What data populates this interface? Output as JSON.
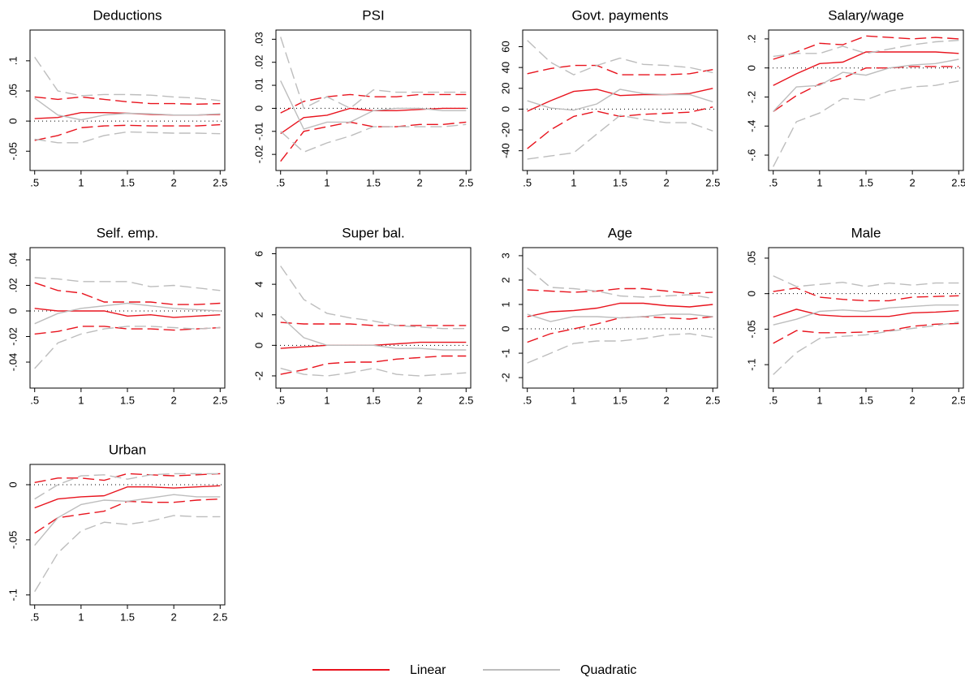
{
  "legend": [
    {
      "name": "Linear",
      "color": "#e8141e"
    },
    {
      "name": "Quadratic",
      "color": "#bdbdbd"
    }
  ],
  "reference_line": 0,
  "chart_data": [
    {
      "type": "line",
      "title": "Deductions",
      "x": [
        0.5,
        0.75,
        1,
        1.25,
        1.5,
        1.75,
        2,
        2.25,
        2.5
      ],
      "xlim": [
        0.45,
        2.55
      ],
      "xticks": [
        {
          "value": 0.5,
          "label": ".5"
        },
        1,
        1.5,
        2,
        2.5
      ],
      "ylim": [
        -0.082,
        0.151
      ],
      "yticks": [
        {
          "value": -0.05,
          "label": "-.05"
        },
        0,
        {
          "value": 0.05,
          "label": ".05"
        },
        {
          "value": 0.1,
          "label": ".1"
        }
      ],
      "series": [
        {
          "values": [
            0.004,
            0.006,
            0.014,
            0.014,
            0.013,
            0.011,
            0.01,
            0.01,
            0.011
          ],
          "upper": [
            0.04,
            0.036,
            0.04,
            0.036,
            0.032,
            0.029,
            0.029,
            0.028,
            0.029
          ],
          "lower": [
            -0.032,
            -0.024,
            -0.011,
            -0.008,
            -0.007,
            -0.008,
            -0.008,
            -0.008,
            -0.006
          ]
        },
        {
          "values": [
            0.038,
            0.01,
            0.002,
            0.01,
            0.013,
            0.012,
            0.01,
            0.01,
            0.012
          ],
          "upper": [
            0.106,
            0.05,
            0.042,
            0.044,
            0.044,
            0.043,
            0.04,
            0.038,
            0.034
          ],
          "lower": [
            -0.03,
            -0.036,
            -0.036,
            -0.024,
            -0.018,
            -0.019,
            -0.02,
            -0.02,
            -0.021
          ]
        }
      ]
    },
    {
      "type": "line",
      "title": "PSI",
      "x": [
        0.5,
        0.75,
        1,
        1.25,
        1.5,
        1.75,
        2,
        2.25,
        2.5
      ],
      "xlim": [
        0.45,
        2.55
      ],
      "xticks": [
        {
          "value": 0.5,
          "label": ".5"
        },
        1,
        1.5,
        2,
        2.5
      ],
      "ylim": [
        -0.027,
        0.034
      ],
      "yticks": [
        {
          "value": -0.02,
          "label": "-.02"
        },
        {
          "value": -0.01,
          "label": "-.01"
        },
        0,
        {
          "value": 0.01,
          "label": ".01"
        },
        {
          "value": 0.02,
          "label": ".02"
        },
        {
          "value": 0.03,
          "label": ".03"
        }
      ],
      "series": [
        {
          "values": [
            -0.011,
            -0.004,
            -0.003,
            0,
            -0.001,
            -0.001,
            -0.0005,
            0,
            0
          ],
          "upper": [
            -0.002,
            0.003,
            0.005,
            0.006,
            0.005,
            0.005,
            0.006,
            0.006,
            0.006
          ],
          "lower": [
            -0.023,
            -0.01,
            -0.008,
            -0.006,
            -0.008,
            -0.008,
            -0.007,
            -0.007,
            -0.006
          ]
        },
        {
          "values": [
            0.012,
            -0.009,
            -0.006,
            -0.006,
            -0.001,
            0,
            0,
            -0.001,
            -0.001
          ],
          "upper": [
            0.031,
            0,
            0.005,
            0,
            0.008,
            0.007,
            0.007,
            0.007,
            0.007
          ],
          "lower": [
            -0.01,
            -0.019,
            -0.015,
            -0.012,
            -0.008,
            -0.008,
            -0.008,
            -0.008,
            -0.007
          ]
        }
      ]
    },
    {
      "type": "line",
      "title": "Govt. payments",
      "x": [
        0.5,
        0.75,
        1,
        1.25,
        1.5,
        1.75,
        2,
        2.25,
        2.5
      ],
      "xlim": [
        0.45,
        2.55
      ],
      "xticks": [
        {
          "value": 0.5,
          "label": ".5"
        },
        1,
        1.5,
        2,
        2.5
      ],
      "ylim": [
        -59,
        76
      ],
      "yticks": [
        -40,
        -20,
        0,
        20,
        40,
        60
      ],
      "series": [
        {
          "values": [
            -2,
            8,
            17,
            19,
            13,
            14,
            14,
            15,
            20
          ],
          "upper": [
            34,
            39,
            42,
            42,
            33,
            33,
            33,
            34,
            38
          ],
          "lower": [
            -38,
            -20,
            -7,
            -2,
            -7,
            -5,
            -4,
            -3,
            2
          ]
        },
        {
          "values": [
            8,
            1,
            -1,
            5,
            19,
            15,
            14,
            14,
            7
          ],
          "upper": [
            66,
            45,
            33,
            42,
            49,
            43,
            42,
            40,
            35
          ],
          "lower": [
            -48,
            -45,
            -42,
            -24,
            -6,
            -10,
            -13,
            -13,
            -21
          ]
        }
      ]
    },
    {
      "type": "line",
      "title": "Salary/wage",
      "x": [
        0.5,
        0.75,
        1,
        1.25,
        1.5,
        1.75,
        2,
        2.25,
        2.5
      ],
      "xlim": [
        0.45,
        2.55
      ],
      "xticks": [
        {
          "value": 0.5,
          "label": ".5"
        },
        1,
        1.5,
        2,
        2.5
      ],
      "ylim": [
        -0.706,
        0.261
      ],
      "yticks": [
        {
          "value": -0.6,
          "label": "-.6"
        },
        {
          "value": -0.4,
          "label": "-.4"
        },
        {
          "value": -0.2,
          "label": "-.2"
        },
        0,
        {
          "value": 0.2,
          "label": ".2"
        }
      ],
      "series": [
        {
          "values": [
            -0.12,
            -0.04,
            0.03,
            0.04,
            0.11,
            0.11,
            0.11,
            0.11,
            0.1
          ],
          "upper": [
            0.06,
            0.11,
            0.17,
            0.16,
            0.22,
            0.21,
            0.2,
            0.21,
            0.2
          ],
          "lower": [
            -0.3,
            -0.19,
            -0.11,
            -0.07,
            0,
            0,
            0.01,
            0.01,
            0.01
          ]
        },
        {
          "values": [
            -0.3,
            -0.13,
            -0.12,
            -0.03,
            -0.05,
            0,
            0.02,
            0.03,
            0.06
          ],
          "upper": [
            0.08,
            0.1,
            0.1,
            0.15,
            0.1,
            0.13,
            0.16,
            0.18,
            0.19
          ],
          "lower": [
            -0.68,
            -0.37,
            -0.31,
            -0.21,
            -0.22,
            -0.16,
            -0.13,
            -0.12,
            -0.09
          ]
        }
      ]
    },
    {
      "type": "line",
      "title": "Self. emp.",
      "x": [
        0.5,
        0.75,
        1,
        1.25,
        1.5,
        1.75,
        2,
        2.25,
        2.5
      ],
      "xlim": [
        0.45,
        2.55
      ],
      "xticks": [
        {
          "value": 0.5,
          "label": ".5"
        },
        1,
        1.5,
        2,
        2.5
      ],
      "ylim": [
        -0.0603,
        0.0495
      ],
      "yticks": [
        {
          "value": -0.04,
          "label": "-.04"
        },
        {
          "value": -0.02,
          "label": "-.02"
        },
        0,
        {
          "value": 0.02,
          "label": ".02"
        },
        {
          "value": 0.04,
          "label": ".04"
        }
      ],
      "series": [
        {
          "values": [
            0.002,
            0,
            0,
            0,
            -0.004,
            -0.003,
            -0.005,
            -0.004,
            -0.003
          ],
          "upper": [
            0.022,
            0.016,
            0.014,
            0.007,
            0.007,
            0.007,
            0.005,
            0.005,
            0.006
          ],
          "lower": [
            -0.018,
            -0.016,
            -0.012,
            -0.012,
            -0.014,
            -0.014,
            -0.015,
            -0.014,
            -0.013
          ]
        },
        {
          "values": [
            -0.01,
            -0.002,
            0.002,
            0.004,
            0.006,
            0.004,
            0.002,
            0.001,
            0
          ],
          "upper": [
            0.026,
            0.025,
            0.023,
            0.023,
            0.023,
            0.019,
            0.02,
            0.018,
            0.016
          ],
          "lower": [
            -0.045,
            -0.025,
            -0.018,
            -0.014,
            -0.012,
            -0.012,
            -0.013,
            -0.014,
            -0.013
          ]
        }
      ]
    },
    {
      "type": "line",
      "title": "Super bal.",
      "x": [
        0.5,
        0.75,
        1,
        1.25,
        1.5,
        1.75,
        2,
        2.25,
        2.5
      ],
      "xlim": [
        0.45,
        2.55
      ],
      "xticks": [
        {
          "value": 0.5,
          "label": ".5"
        },
        1,
        1.5,
        2,
        2.5
      ],
      "ylim": [
        -2.8,
        6.4
      ],
      "yticks": [
        -2,
        0,
        2,
        4,
        6
      ],
      "series": [
        {
          "values": [
            -0.2,
            -0.1,
            0,
            0,
            0,
            0.1,
            0.2,
            0.2,
            0.2
          ],
          "upper": [
            1.5,
            1.4,
            1.4,
            1.4,
            1.3,
            1.3,
            1.3,
            1.3,
            1.3
          ],
          "lower": [
            -1.9,
            -1.6,
            -1.2,
            -1.1,
            -1.1,
            -0.9,
            -0.8,
            -0.7,
            -0.7
          ]
        },
        {
          "values": [
            1.9,
            0.5,
            0,
            0,
            0,
            -0.2,
            -0.2,
            -0.3,
            -0.3
          ],
          "upper": [
            5.2,
            3,
            2.1,
            1.8,
            1.6,
            1.3,
            1.2,
            1.1,
            1.1
          ],
          "lower": [
            -1.5,
            -1.9,
            -2,
            -1.8,
            -1.5,
            -1.9,
            -2,
            -1.9,
            -1.8
          ]
        }
      ]
    },
    {
      "type": "line",
      "title": "Age",
      "x": [
        0.5,
        0.75,
        1,
        1.25,
        1.5,
        1.75,
        2,
        2.25,
        2.5
      ],
      "xlim": [
        0.45,
        2.55
      ],
      "xticks": [
        {
          "value": 0.5,
          "label": ".5"
        },
        1,
        1.5,
        2,
        2.5
      ],
      "ylim": [
        -2.43,
        3.33
      ],
      "yticks": [
        -2,
        -1,
        0,
        1,
        2,
        3
      ],
      "series": [
        {
          "values": [
            0.5,
            0.7,
            0.75,
            0.85,
            1.05,
            1.05,
            0.95,
            0.9,
            1
          ],
          "upper": [
            1.6,
            1.55,
            1.5,
            1.55,
            1.65,
            1.65,
            1.55,
            1.45,
            1.5
          ],
          "lower": [
            -0.55,
            -0.2,
            0,
            0.2,
            0.45,
            0.5,
            0.45,
            0.4,
            0.5
          ]
        },
        {
          "values": [
            0.6,
            0.3,
            0.5,
            0.5,
            0.45,
            0.5,
            0.6,
            0.6,
            0.5
          ],
          "upper": [
            2.5,
            1.7,
            1.65,
            1.55,
            1.35,
            1.3,
            1.35,
            1.4,
            1.25
          ],
          "lower": [
            -1.4,
            -1,
            -0.6,
            -0.5,
            -0.5,
            -0.4,
            -0.25,
            -0.2,
            -0.35
          ]
        }
      ]
    },
    {
      "type": "line",
      "title": "Male",
      "x": [
        0.5,
        0.75,
        1,
        1.25,
        1.5,
        1.75,
        2,
        2.25,
        2.5
      ],
      "xlim": [
        0.45,
        2.55
      ],
      "xticks": [
        {
          "value": 0.5,
          "label": ".5"
        },
        1,
        1.5,
        2,
        2.5
      ],
      "ylim": [
        -0.133,
        0.0648
      ],
      "yticks": [
        {
          "value": -0.1,
          "label": "-.1"
        },
        {
          "value": -0.05,
          "label": "-.05"
        },
        0,
        {
          "value": 0.05,
          "label": ".05"
        }
      ],
      "series": [
        {
          "values": [
            -0.033,
            -0.022,
            -0.03,
            -0.032,
            -0.032,
            -0.032,
            -0.027,
            -0.026,
            -0.024
          ],
          "upper": [
            0.003,
            0.008,
            -0.005,
            -0.008,
            -0.01,
            -0.01,
            -0.005,
            -0.004,
            -0.003
          ],
          "lower": [
            -0.07,
            -0.052,
            -0.055,
            -0.055,
            -0.054,
            -0.052,
            -0.046,
            -0.043,
            -0.042
          ]
        },
        {
          "values": [
            -0.044,
            -0.036,
            -0.025,
            -0.023,
            -0.025,
            -0.02,
            -0.018,
            -0.016,
            -0.016
          ],
          "upper": [
            0.025,
            0.01,
            0.013,
            0.016,
            0.01,
            0.015,
            0.012,
            0.015,
            0.015
          ],
          "lower": [
            -0.114,
            -0.083,
            -0.063,
            -0.06,
            -0.058,
            -0.053,
            -0.049,
            -0.045,
            -0.04
          ]
        }
      ]
    },
    {
      "type": "line",
      "title": "Urban",
      "x": [
        0.5,
        0.75,
        1,
        1.25,
        1.5,
        1.75,
        2,
        2.25,
        2.5
      ],
      "xlim": [
        0.45,
        2.55
      ],
      "xticks": [
        {
          "value": 0.5,
          "label": ".5"
        },
        1,
        1.5,
        2,
        2.5
      ],
      "ylim": [
        -0.109,
        0.0184
      ],
      "yticks": [
        {
          "value": -0.1,
          "label": "-.1"
        },
        {
          "value": -0.05,
          "label": "-.05"
        },
        0
      ],
      "series": [
        {
          "values": [
            -0.021,
            -0.013,
            -0.011,
            -0.01,
            -0.002,
            -0.002,
            -0.003,
            -0.002,
            -0.001
          ],
          "upper": [
            0.002,
            0.006,
            0.006,
            0.004,
            0.01,
            0.009,
            0.008,
            0.009,
            0.01
          ],
          "lower": [
            -0.044,
            -0.03,
            -0.027,
            -0.024,
            -0.015,
            -0.016,
            -0.016,
            -0.014,
            -0.013
          ]
        },
        {
          "values": [
            -0.055,
            -0.03,
            -0.018,
            -0.014,
            -0.015,
            -0.012,
            -0.009,
            -0.011,
            -0.011
          ],
          "upper": [
            -0.013,
            0,
            0.008,
            0.009,
            0.005,
            0.009,
            0.01,
            0.01,
            0.01
          ],
          "lower": [
            -0.097,
            -0.062,
            -0.042,
            -0.034,
            -0.036,
            -0.033,
            -0.028,
            -0.029,
            -0.029
          ]
        }
      ]
    }
  ]
}
